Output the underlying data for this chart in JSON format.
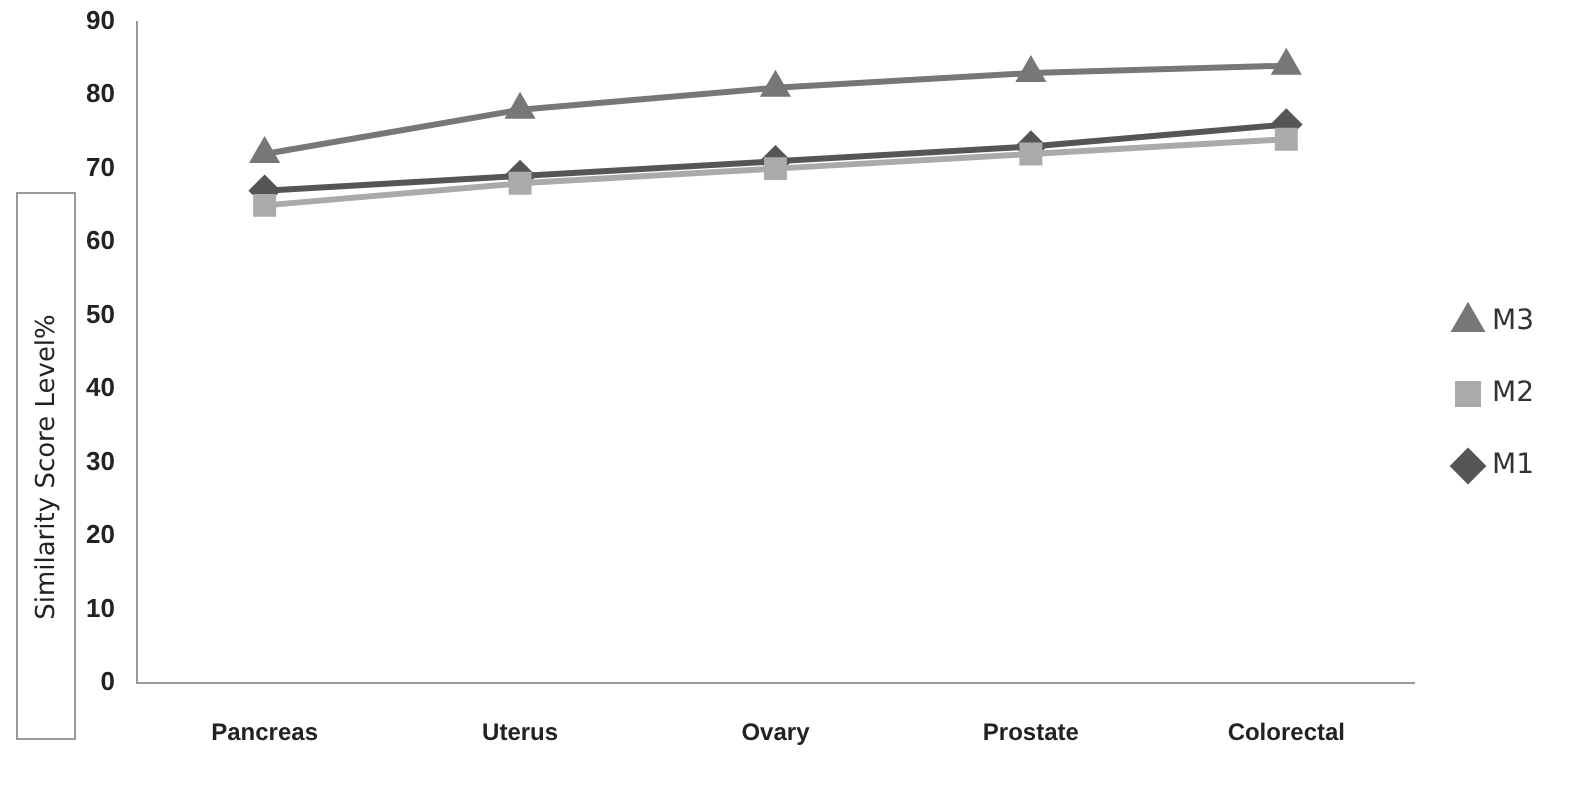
{
  "chart_data": {
    "type": "line",
    "ylabel": "Similarity Score Level%",
    "categories": [
      "Pancreas",
      "Uterus",
      "Ovary",
      "Prostate",
      "Colorectal"
    ],
    "series": [
      {
        "name": "M1",
        "color": "#555555",
        "marker": "diamond",
        "values": [
          67,
          69,
          71,
          73,
          76
        ]
      },
      {
        "name": "M2",
        "color": "#aaaaaa",
        "marker": "square",
        "values": [
          65,
          68,
          70,
          72,
          74
        ]
      },
      {
        "name": "M3",
        "color": "#777777",
        "marker": "triangle",
        "values": [
          72,
          78,
          81,
          83,
          84
        ]
      }
    ],
    "ylim": [
      0,
      90
    ],
    "yticks": [
      0,
      10,
      20,
      30,
      40,
      50,
      60,
      70,
      80,
      90
    ],
    "grid": false,
    "legend": "right"
  }
}
